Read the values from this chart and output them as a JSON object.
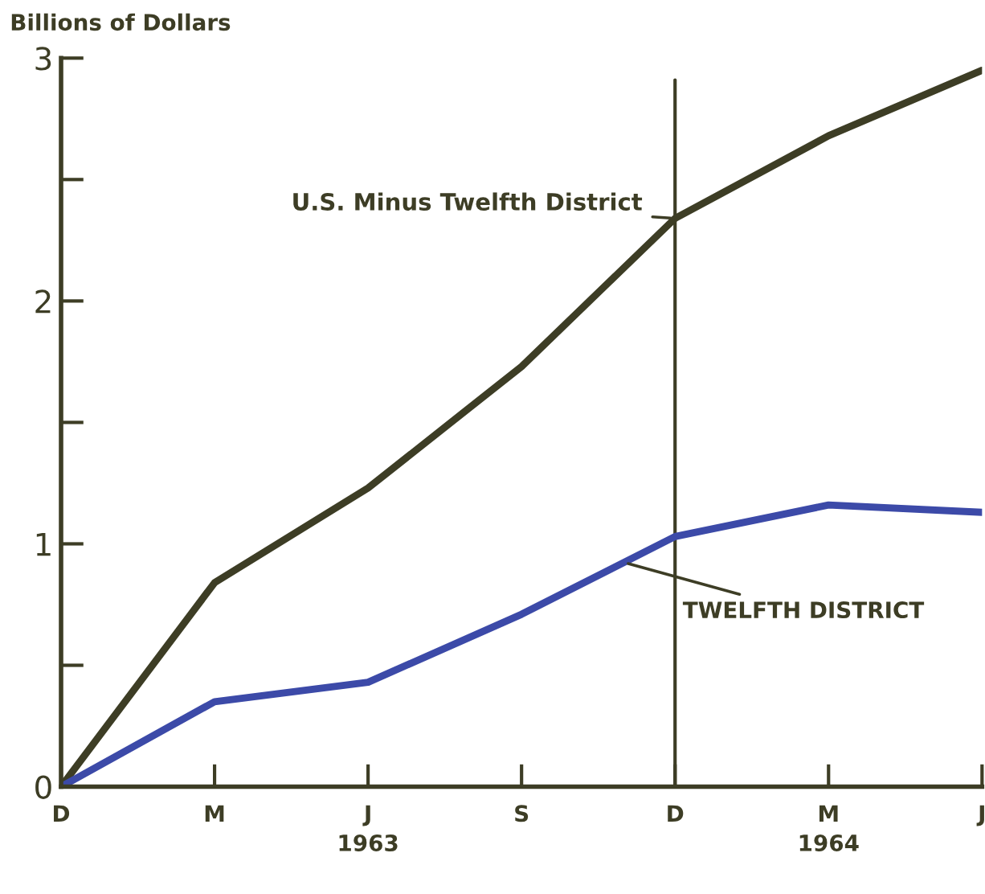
{
  "chart_data": {
    "type": "line",
    "ylabel": "Billions of Dollars",
    "categories": [
      "D",
      "M",
      "J",
      "S",
      "D",
      "M",
      "J"
    ],
    "ylim": [
      0,
      3
    ],
    "yticks": [
      0,
      {
        "value": 0.5,
        "label": null
      },
      1,
      {
        "value": 1.5,
        "label": null
      },
      2,
      {
        "value": 2.5,
        "label": null
      },
      3
    ],
    "series": [
      {
        "name": "U.S. Minus Twelfth District",
        "color": "#3d3d25",
        "values": [
          0,
          0.84,
          1.23,
          1.73,
          2.34,
          2.68,
          2.95
        ]
      },
      {
        "name": "TWELFTH DISTRICT",
        "color": "#3c4aa8",
        "values": [
          0,
          0.35,
          0.43,
          0.71,
          1.03,
          1.16,
          1.13
        ]
      }
    ],
    "annotations": [
      "1963",
      "1964"
    ],
    "marker": "none",
    "line_style": "solid"
  }
}
